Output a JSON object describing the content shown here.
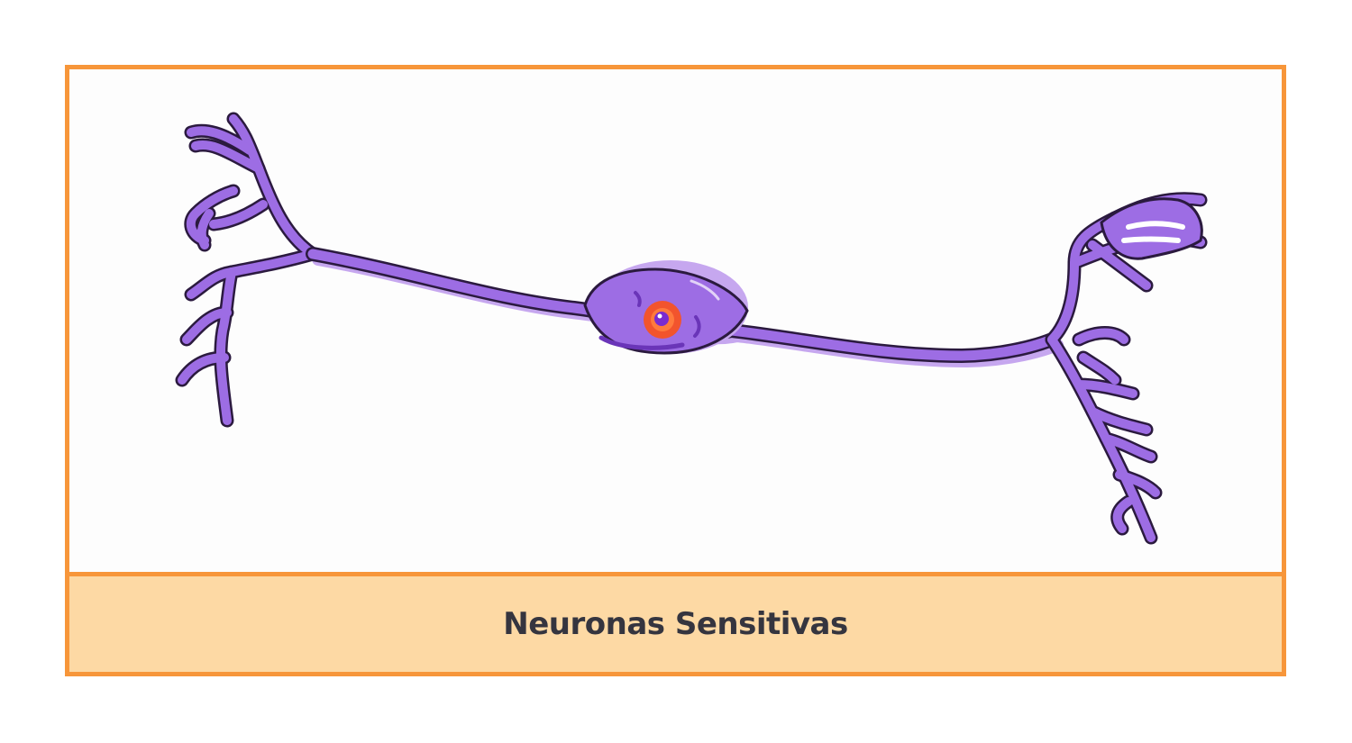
{
  "card": {
    "caption": "Neuronas Sensitivas"
  },
  "diagram": {
    "subject": "sensory neuron",
    "colors": {
      "border": "#f7963a",
      "caption_background": "#fdd9a4",
      "caption_text": "#35353f",
      "neuron_fill": "#9d6de4",
      "neuron_shadow": "#c6a7ef",
      "neuron_outline": "#2b1a3f",
      "nucleus_outer": "#f2542d",
      "nucleus_inner": "#7a2bd0"
    }
  }
}
